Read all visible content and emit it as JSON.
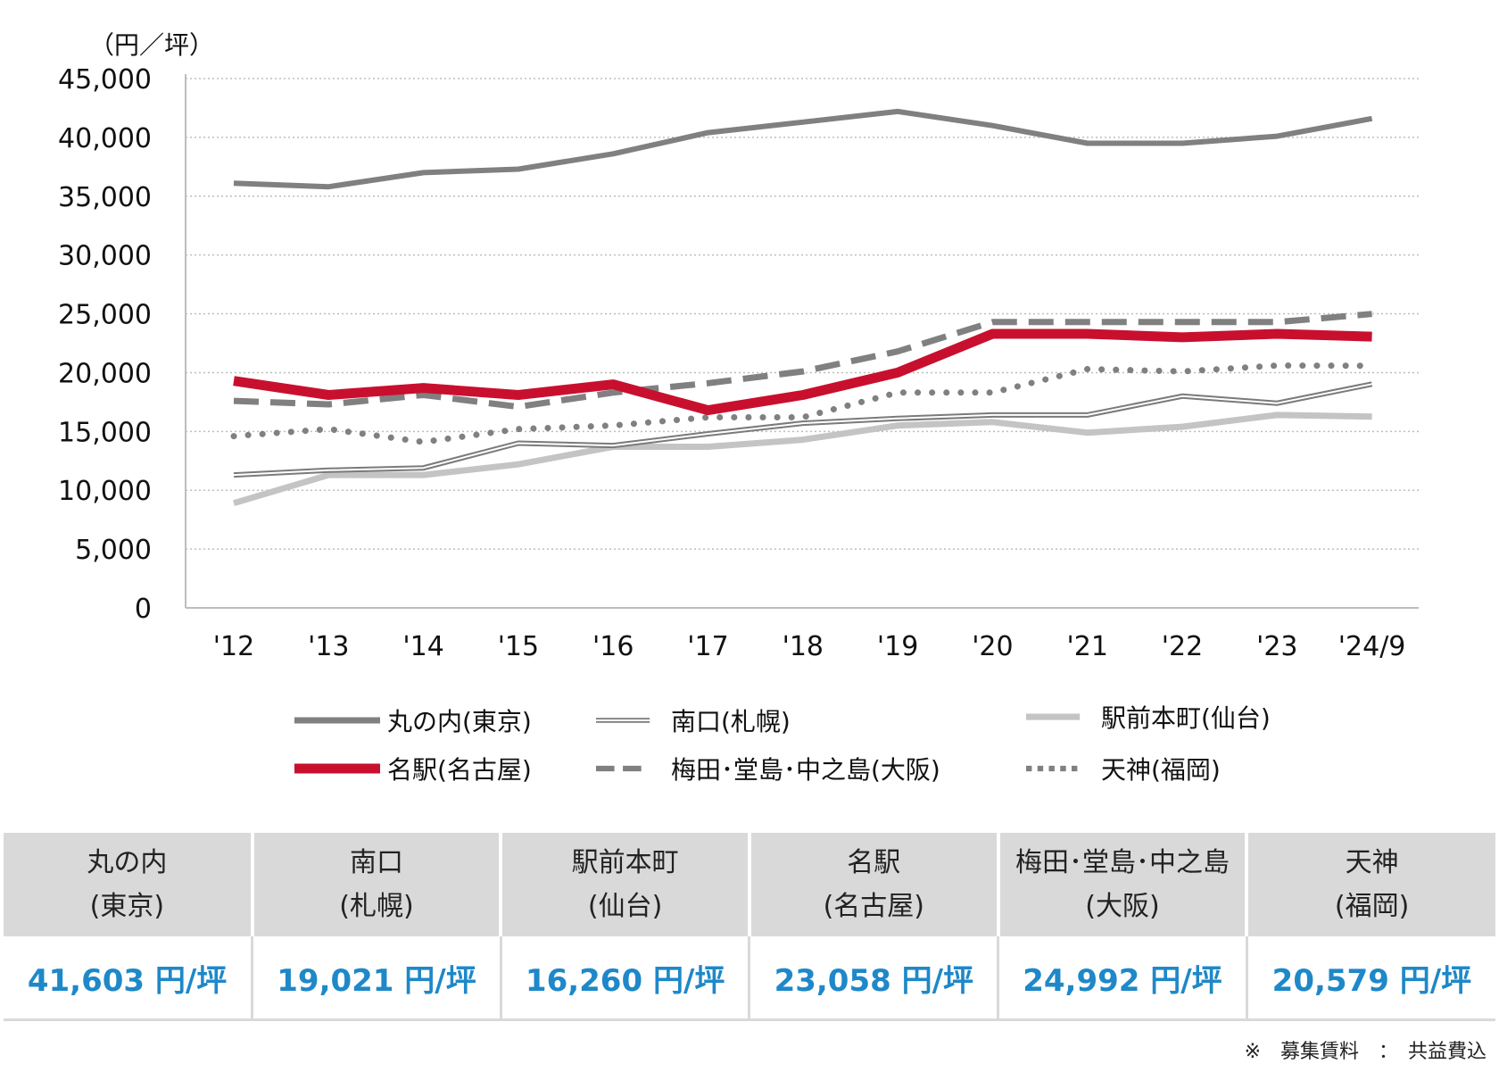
{
  "chart_data": {
    "type": "line",
    "unit_label": "（円／坪）",
    "categories": [
      "'12",
      "'13",
      "'14",
      "'15",
      "'16",
      "'17",
      "'18",
      "'19",
      "'20",
      "'21",
      "'22",
      "'23",
      "'24/9"
    ],
    "ylim": [
      0,
      45000
    ],
    "yticks": [
      0,
      5000,
      10000,
      15000,
      20000,
      25000,
      30000,
      35000,
      40000,
      45000
    ],
    "ytick_labels": [
      "0",
      "5,000",
      "10,000",
      "15,000",
      "20,000",
      "25,000",
      "30,000",
      "35,000",
      "40,000",
      "45,000"
    ],
    "grid": "horizontal dotted",
    "legend_position": "bottom",
    "series": [
      {
        "name": "丸の内(東京)",
        "style": "solid-gray",
        "color": "#808080",
        "values": [
          36100,
          35800,
          37000,
          37300,
          38600,
          40400,
          41300,
          42200,
          41000,
          39500,
          39500,
          40100,
          41603
        ]
      },
      {
        "name": "南口(札幌)",
        "style": "double-line",
        "color": "#7a7a7a",
        "values": [
          11300,
          11700,
          11900,
          14000,
          13800,
          14800,
          15700,
          16100,
          16400,
          16400,
          18000,
          17400,
          19021
        ]
      },
      {
        "name": "駅前本町(仙台)",
        "style": "light-gray",
        "color": "#c4c4c4",
        "values": [
          8900,
          11300,
          11300,
          12200,
          13700,
          13700,
          14300,
          15500,
          15800,
          14900,
          15400,
          16400,
          16260
        ]
      },
      {
        "name": "名駅(名古屋)",
        "style": "thick-red",
        "color": "#c8102e",
        "values": [
          19300,
          18100,
          18700,
          18100,
          19000,
          16800,
          18100,
          20000,
          23300,
          23300,
          23000,
          23300,
          23058
        ]
      },
      {
        "name": "梅田･堂島･中之島(大阪)",
        "style": "dashed-gray",
        "color": "#808080",
        "values": [
          17600,
          17300,
          18100,
          17100,
          18300,
          19100,
          20100,
          21800,
          24300,
          24300,
          24300,
          24300,
          24992
        ]
      },
      {
        "name": "天神(福岡)",
        "style": "dotted-gray",
        "color": "#808080",
        "values": [
          14600,
          15200,
          14100,
          15200,
          15500,
          16200,
          16200,
          18300,
          18300,
          20300,
          20100,
          20600,
          20579
        ]
      }
    ]
  },
  "table": {
    "headers": [
      {
        "line1": "丸の内",
        "line2": "(東京)"
      },
      {
        "line1": "南口",
        "line2": "(札幌)"
      },
      {
        "line1": "駅前本町",
        "line2": "(仙台)"
      },
      {
        "line1": "名駅",
        "line2": "(名古屋)"
      },
      {
        "line1": "梅田･堂島･中之島",
        "line2": "(大阪)"
      },
      {
        "line1": "天神",
        "line2": "(福岡)"
      }
    ],
    "values": [
      "41,603 円/坪",
      "19,021 円/坪",
      "16,260 円/坪",
      "23,058 円/坪",
      "24,992 円/坪",
      "20,579 円/坪"
    ],
    "value_color": "#1e88c8",
    "header_bg": "#d9d9d9"
  },
  "footnote": "※　募集賃料　：　共益費込"
}
